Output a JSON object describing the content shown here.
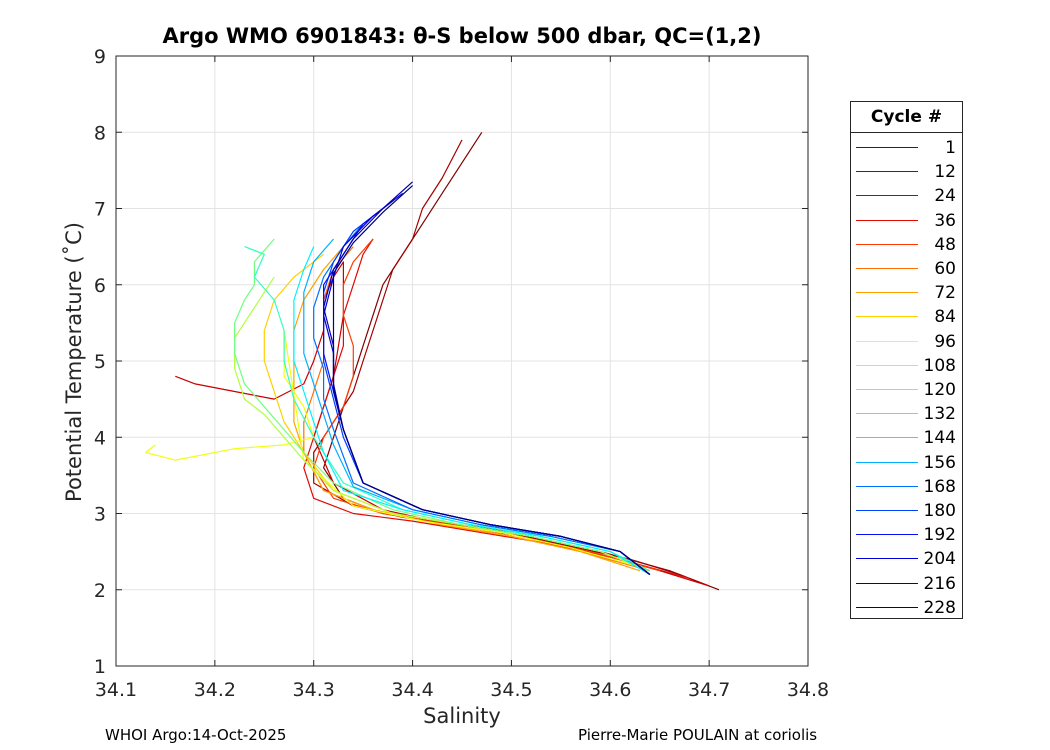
{
  "chart_data": {
    "type": "line",
    "title": "Argo WMO 6901843: θ-S below 500 dbar,  QC=(1,2)",
    "xlabel": "Salinity",
    "ylabel": "Potential Temperature (˚C)",
    "xlim": [
      34.1,
      34.8
    ],
    "ylim": [
      1,
      9
    ],
    "xticks": [
      "34.1",
      "34.2",
      "34.3",
      "34.4",
      "34.5",
      "34.6",
      "34.7",
      "34.8"
    ],
    "yticks": [
      "1",
      "2",
      "3",
      "4",
      "5",
      "6",
      "7",
      "8",
      "9"
    ],
    "grid": true,
    "legend": {
      "title": "Cycle #",
      "position": "right",
      "entries": [
        "1",
        "12",
        "24",
        "36",
        "48",
        "60",
        "72",
        "84",
        "96",
        "108",
        "120",
        "132",
        "144",
        "156",
        "168",
        "180",
        "192",
        "204",
        "216",
        "228"
      ],
      "colors": [
        "#800000",
        "#a00000",
        "#c80000",
        "#e00a00",
        "#ff3a00",
        "#ff7000",
        "#ffa000",
        "#ffd000",
        "#f0ff10",
        "#b0ff40",
        "#70ff80",
        "#30ffc0",
        "#00f0ff",
        "#00b0ff",
        "#0070ff",
        "#0040ff",
        "#0010ff",
        "#0000d8",
        "#0000b0",
        "#000080"
      ]
    },
    "series_style": "thin profiles, one per cycle, colored by cycle number",
    "series": [
      {
        "name": "1",
        "x": [
          34.47,
          34.45,
          34.43,
          34.41,
          34.39,
          34.37,
          34.36,
          34.35,
          34.34,
          34.33,
          34.32,
          34.31,
          34.33,
          34.37,
          34.42,
          34.48,
          34.55,
          34.62,
          34.67,
          34.71
        ],
        "y": [
          8.0,
          7.6,
          7.2,
          6.8,
          6.4,
          6.0,
          5.6,
          5.2,
          4.8,
          4.4,
          4.0,
          3.6,
          3.2,
          3.0,
          2.9,
          2.8,
          2.6,
          2.4,
          2.2,
          2.0
        ]
      },
      {
        "name": "12",
        "x": [
          34.45,
          34.43,
          34.41,
          34.4,
          34.38,
          34.37,
          34.36,
          34.35,
          34.34,
          34.32,
          34.3,
          34.3,
          34.34,
          34.39,
          34.45,
          34.52,
          34.59,
          34.66,
          34.7
        ],
        "y": [
          7.9,
          7.4,
          7.0,
          6.6,
          6.2,
          5.8,
          5.4,
          5.0,
          4.6,
          4.2,
          3.8,
          3.4,
          3.1,
          2.95,
          2.85,
          2.7,
          2.5,
          2.25,
          2.05
        ]
      },
      {
        "name": "24",
        "x": [
          34.16,
          34.18,
          34.22,
          34.26,
          34.29,
          34.3,
          34.31,
          34.31,
          34.32,
          34.33,
          34.33,
          34.32,
          34.3,
          34.32,
          34.37,
          34.44,
          34.51,
          34.58,
          34.65,
          34.7
        ],
        "y": [
          4.8,
          4.7,
          4.6,
          4.5,
          4.7,
          5.0,
          5.4,
          5.8,
          6.1,
          6.3,
          5.6,
          4.8,
          4.0,
          3.4,
          3.05,
          2.85,
          2.7,
          2.5,
          2.25,
          2.05
        ]
      },
      {
        "name": "36",
        "x": [
          34.36,
          34.35,
          34.34,
          34.33,
          34.33,
          34.32,
          34.31,
          34.3,
          34.29,
          34.3,
          34.34,
          34.4,
          34.47,
          34.54,
          34.61,
          34.68
        ],
        "y": [
          6.6,
          6.4,
          6.0,
          5.6,
          5.2,
          4.8,
          4.4,
          4.0,
          3.6,
          3.2,
          3.0,
          2.9,
          2.75,
          2.6,
          2.4,
          2.15
        ]
      },
      {
        "name": "48",
        "x": [
          34.36,
          34.34,
          34.33,
          34.33,
          34.34,
          34.34,
          34.33,
          34.31,
          34.3,
          34.32,
          34.37,
          34.44,
          34.51,
          34.58,
          34.65
        ],
        "y": [
          6.6,
          6.3,
          6.0,
          5.6,
          5.2,
          4.8,
          4.4,
          4.0,
          3.6,
          3.2,
          3.0,
          2.85,
          2.7,
          2.5,
          2.25
        ]
      },
      {
        "name": "60",
        "x": [
          34.34,
          34.32,
          34.31,
          34.31,
          34.31,
          34.3,
          34.29,
          34.29,
          34.31,
          34.36,
          34.43,
          34.5,
          34.57,
          34.64
        ],
        "y": [
          6.5,
          6.2,
          5.8,
          5.4,
          5.0,
          4.6,
          4.2,
          3.8,
          3.3,
          3.05,
          2.85,
          2.7,
          2.5,
          2.25
        ]
      },
      {
        "name": "72",
        "x": [
          34.33,
          34.31,
          34.29,
          34.28,
          34.28,
          34.28,
          34.28,
          34.29,
          34.31,
          34.36,
          34.43,
          34.5,
          34.57,
          34.63
        ],
        "y": [
          6.5,
          6.2,
          5.8,
          5.4,
          5.0,
          4.6,
          4.2,
          3.8,
          3.3,
          3.05,
          2.85,
          2.7,
          2.5,
          2.25
        ]
      },
      {
        "name": "84",
        "x": [
          34.31,
          34.28,
          34.26,
          34.25,
          34.25,
          34.26,
          34.27,
          34.29,
          34.32,
          34.38,
          34.45,
          34.52,
          34.59,
          34.64
        ],
        "y": [
          6.4,
          6.1,
          5.8,
          5.4,
          5.0,
          4.6,
          4.2,
          3.8,
          3.3,
          3.0,
          2.85,
          2.7,
          2.5,
          2.25
        ]
      },
      {
        "name": "96",
        "x": [
          34.14,
          34.13,
          34.16,
          34.22,
          34.27,
          34.3,
          34.29,
          34.27,
          34.27,
          34.29,
          34.34,
          34.41,
          34.49,
          34.56,
          34.63
        ],
        "y": [
          3.9,
          3.8,
          3.7,
          3.85,
          3.9,
          4.0,
          4.4,
          4.8,
          5.4,
          3.7,
          3.1,
          2.9,
          2.75,
          2.55,
          2.3
        ]
      },
      {
        "name": "108",
        "x": [
          34.26,
          34.24,
          34.22,
          34.22,
          34.23,
          34.25,
          34.27,
          34.29,
          34.32,
          34.38,
          34.45,
          34.52,
          34.59,
          34.64
        ],
        "y": [
          6.1,
          5.7,
          5.3,
          4.9,
          4.5,
          4.3,
          4.0,
          3.7,
          3.3,
          3.0,
          2.85,
          2.7,
          2.5,
          2.25
        ]
      },
      {
        "name": "120",
        "x": [
          34.26,
          34.24,
          34.24,
          34.23,
          34.22,
          34.22,
          34.23,
          34.25,
          34.27,
          34.29,
          34.32,
          34.38,
          34.45,
          34.52,
          34.59
        ],
        "y": [
          6.6,
          6.3,
          6.0,
          5.8,
          5.5,
          5.1,
          4.7,
          4.4,
          4.1,
          3.8,
          3.4,
          3.05,
          2.85,
          2.7,
          2.5
        ]
      },
      {
        "name": "132",
        "x": [
          34.23,
          34.25,
          34.24,
          34.26,
          34.27,
          34.27,
          34.28,
          34.3,
          34.33,
          34.39,
          34.46,
          34.53,
          34.6,
          34.64
        ],
        "y": [
          6.5,
          6.4,
          6.1,
          5.8,
          5.4,
          5.0,
          4.5,
          4.0,
          3.4,
          3.05,
          2.85,
          2.7,
          2.5,
          2.25
        ]
      },
      {
        "name": "144",
        "x": [
          34.3,
          34.29,
          34.28,
          34.28,
          34.28,
          34.29,
          34.3,
          34.31,
          34.33,
          34.39,
          34.46,
          34.53,
          34.6,
          34.64
        ],
        "y": [
          6.5,
          6.2,
          5.8,
          5.4,
          5.0,
          4.6,
          4.2,
          3.8,
          3.3,
          3.05,
          2.85,
          2.7,
          2.5,
          2.2
        ]
      },
      {
        "name": "156",
        "x": [
          34.32,
          34.3,
          34.29,
          34.29,
          34.29,
          34.3,
          34.31,
          34.32,
          34.34,
          34.4,
          34.47,
          34.54,
          34.61,
          34.64
        ],
        "y": [
          6.6,
          6.3,
          5.9,
          5.5,
          5.1,
          4.7,
          4.3,
          3.9,
          3.35,
          3.05,
          2.85,
          2.7,
          2.5,
          2.2
        ]
      },
      {
        "name": "168",
        "x": [
          34.35,
          34.33,
          34.31,
          34.3,
          34.3,
          34.31,
          34.31,
          34.32,
          34.34,
          34.4,
          34.47,
          34.54,
          34.61,
          34.64
        ],
        "y": [
          6.8,
          6.5,
          6.1,
          5.7,
          5.3,
          4.9,
          4.5,
          4.1,
          3.4,
          3.05,
          2.85,
          2.7,
          2.5,
          2.2
        ]
      },
      {
        "name": "180",
        "x": [
          34.37,
          34.34,
          34.32,
          34.31,
          34.31,
          34.31,
          34.32,
          34.33,
          34.35,
          34.41,
          34.48,
          34.55,
          34.61,
          34.64
        ],
        "y": [
          7.0,
          6.7,
          6.3,
          5.9,
          5.5,
          5.0,
          4.5,
          4.0,
          3.4,
          3.05,
          2.85,
          2.7,
          2.5,
          2.2
        ]
      },
      {
        "name": "192",
        "x": [
          34.38,
          34.35,
          34.33,
          34.31,
          34.31,
          34.31,
          34.32,
          34.33,
          34.35,
          34.41,
          34.48,
          34.55,
          34.61,
          34.64
        ],
        "y": [
          7.1,
          6.8,
          6.4,
          6.0,
          5.6,
          5.1,
          4.6,
          4.1,
          3.4,
          3.05,
          2.85,
          2.7,
          2.5,
          2.2
        ]
      },
      {
        "name": "204",
        "x": [
          34.39,
          34.36,
          34.33,
          34.32,
          34.31,
          34.32,
          34.32,
          34.33,
          34.35,
          34.41,
          34.48,
          34.55,
          34.61,
          34.64
        ],
        "y": [
          7.2,
          6.9,
          6.5,
          6.1,
          5.6,
          5.1,
          4.6,
          4.1,
          3.4,
          3.05,
          2.85,
          2.7,
          2.5,
          2.2
        ]
      },
      {
        "name": "216",
        "x": [
          34.4,
          34.37,
          34.34,
          34.32,
          34.31,
          34.32,
          34.32,
          34.33,
          34.35,
          34.41,
          34.48,
          34.55,
          34.61,
          34.64
        ],
        "y": [
          7.35,
          7.0,
          6.6,
          6.2,
          5.7,
          5.2,
          4.7,
          4.1,
          3.4,
          3.05,
          2.85,
          2.7,
          2.5,
          2.2
        ]
      },
      {
        "name": "228",
        "x": [
          34.4,
          34.37,
          34.34,
          34.32,
          34.32,
          34.32,
          34.32,
          34.33,
          34.35,
          34.41,
          34.48,
          34.55,
          34.61,
          34.64
        ],
        "y": [
          7.3,
          6.95,
          6.55,
          6.15,
          5.65,
          5.15,
          4.65,
          4.1,
          3.4,
          3.05,
          2.85,
          2.7,
          2.5,
          2.2
        ]
      }
    ]
  },
  "footer": {
    "left": "WHOI Argo:14-Oct-2025",
    "right": "Pierre-Marie POULAIN at coriolis"
  }
}
